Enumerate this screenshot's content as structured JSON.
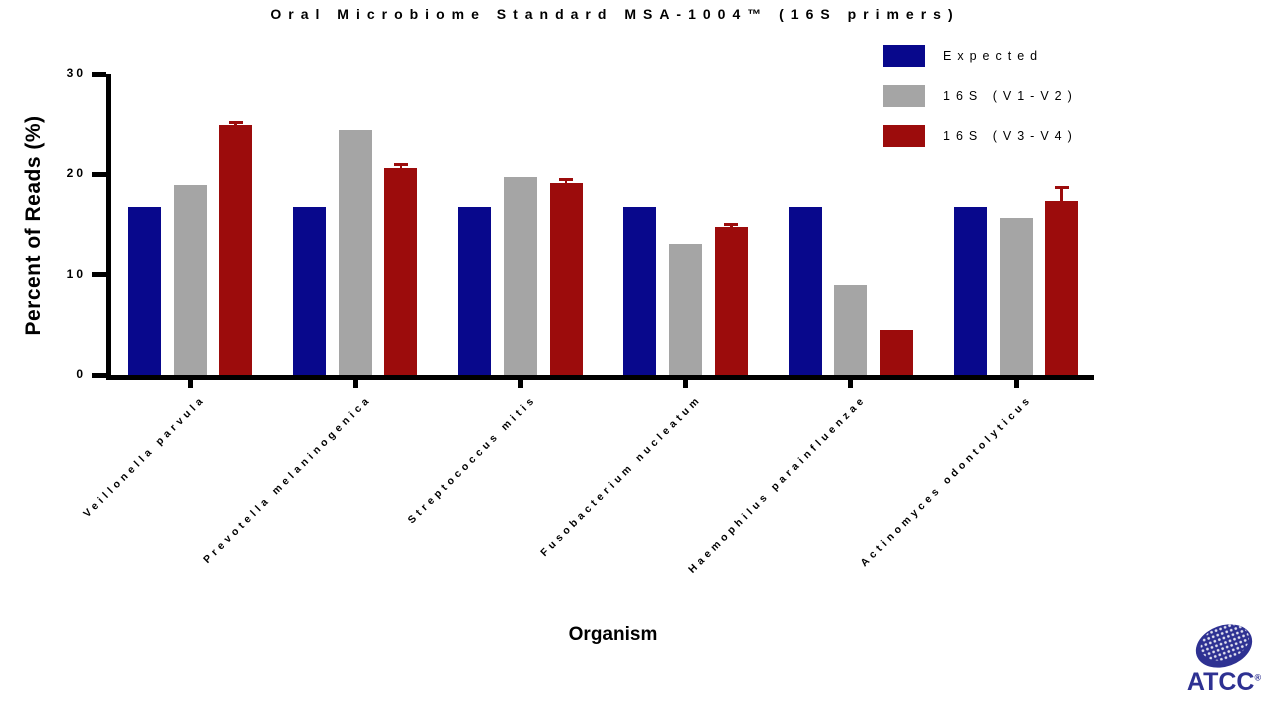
{
  "title": "Oral Microbiome Standard MSA-1004™  (16S primers)",
  "axis": {
    "x_label": "Organism",
    "y_label": "Percent of Reads (%)"
  },
  "legend": [
    {
      "label": "Expected",
      "color": "#08088C"
    },
    {
      "label": "16S (V1-V2)",
      "color": "#A5A5A5"
    },
    {
      "label": "16S (V3-V4)",
      "color": "#9C0C0C"
    }
  ],
  "logo": {
    "text": "ATCC",
    "registered_mark": "®",
    "color": "#2E3192"
  },
  "chart_data": {
    "type": "bar",
    "title": "Oral Microbiome Standard MSA-1004™ (16S primers)",
    "xlabel": "Organism",
    "ylabel": "Percent of Reads (%)",
    "ylim": [
      0,
      30
    ],
    "yticks": [
      0,
      10,
      20,
      30
    ],
    "grid": false,
    "legend_position": "top-right",
    "categories": [
      "Veillonella parvula",
      "Prevotella melaninogenica",
      "Streptococcus mitis",
      "Fusobacterium nucleatum",
      "Haemophilus parainfluenzae",
      "Actinomyces odontolyticus"
    ],
    "series": [
      {
        "name": "Expected",
        "color": "#08088C",
        "values": [
          16.7,
          16.7,
          16.7,
          16.7,
          16.7,
          16.7
        ],
        "errors": [
          0,
          0,
          0,
          0,
          0,
          0
        ]
      },
      {
        "name": "16S (V1-V2)",
        "color": "#A5A5A5",
        "values": [
          18.9,
          24.4,
          19.7,
          13.1,
          9.0,
          15.6
        ],
        "errors": [
          0,
          0,
          0,
          0,
          0,
          0
        ]
      },
      {
        "name": "16S (V3-V4)",
        "color": "#9C0C0C",
        "values": [
          24.9,
          20.6,
          19.1,
          14.8,
          4.5,
          17.3
        ],
        "errors": [
          0.3,
          0.4,
          0.4,
          0.2,
          0,
          1.4
        ]
      }
    ]
  }
}
